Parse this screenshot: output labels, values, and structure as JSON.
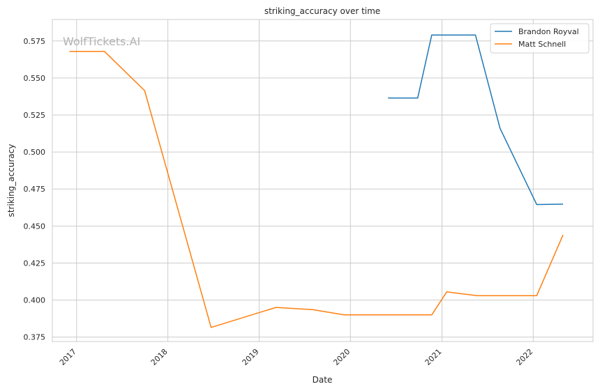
{
  "chart_data": {
    "type": "line",
    "title": "striking_accuracy over time",
    "xlabel": "Date",
    "ylabel": "striking_accuracy",
    "watermark": "WolfTickets.AI",
    "x_ticks": [
      "2017",
      "2018",
      "2019",
      "2020",
      "2021",
      "2022"
    ],
    "y_ticks": [
      "0.375",
      "0.400",
      "0.425",
      "0.450",
      "0.475",
      "0.500",
      "0.525",
      "0.550",
      "0.575"
    ],
    "xlim": [
      "2016-09-26",
      "2022-08-28"
    ],
    "ylim": [
      0.372,
      0.5895
    ],
    "grid": true,
    "legend_position": "top-right",
    "series": [
      {
        "name": "Brandon Royval",
        "color": "#1f77b4",
        "points": [
          {
            "x": "2020-05-30",
            "y": 0.5365
          },
          {
            "x": "2020-09-26",
            "y": 0.5365
          },
          {
            "x": "2020-11-21",
            "y": 0.579
          },
          {
            "x": "2021-05-15",
            "y": 0.579
          },
          {
            "x": "2021-08-21",
            "y": 0.516
          },
          {
            "x": "2022-01-15",
            "y": 0.4645
          },
          {
            "x": "2022-04-30",
            "y": 0.4648
          }
        ]
      },
      {
        "name": "Matt Schnell",
        "color": "#ff7f0e",
        "points": [
          {
            "x": "2016-12-03",
            "y": 0.568
          },
          {
            "x": "2017-04-22",
            "y": 0.568
          },
          {
            "x": "2017-09-30",
            "y": 0.5415
          },
          {
            "x": "2018-06-23",
            "y": 0.3815
          },
          {
            "x": "2019-03-09",
            "y": 0.395
          },
          {
            "x": "2019-08-03",
            "y": 0.3935
          },
          {
            "x": "2019-12-07",
            "y": 0.39
          },
          {
            "x": "2020-11-21",
            "y": 0.39
          },
          {
            "x": "2021-01-20",
            "y": 0.4055
          },
          {
            "x": "2021-05-22",
            "y": 0.403
          },
          {
            "x": "2022-01-15",
            "y": 0.403
          },
          {
            "x": "2022-04-30",
            "y": 0.444
          }
        ]
      }
    ]
  }
}
